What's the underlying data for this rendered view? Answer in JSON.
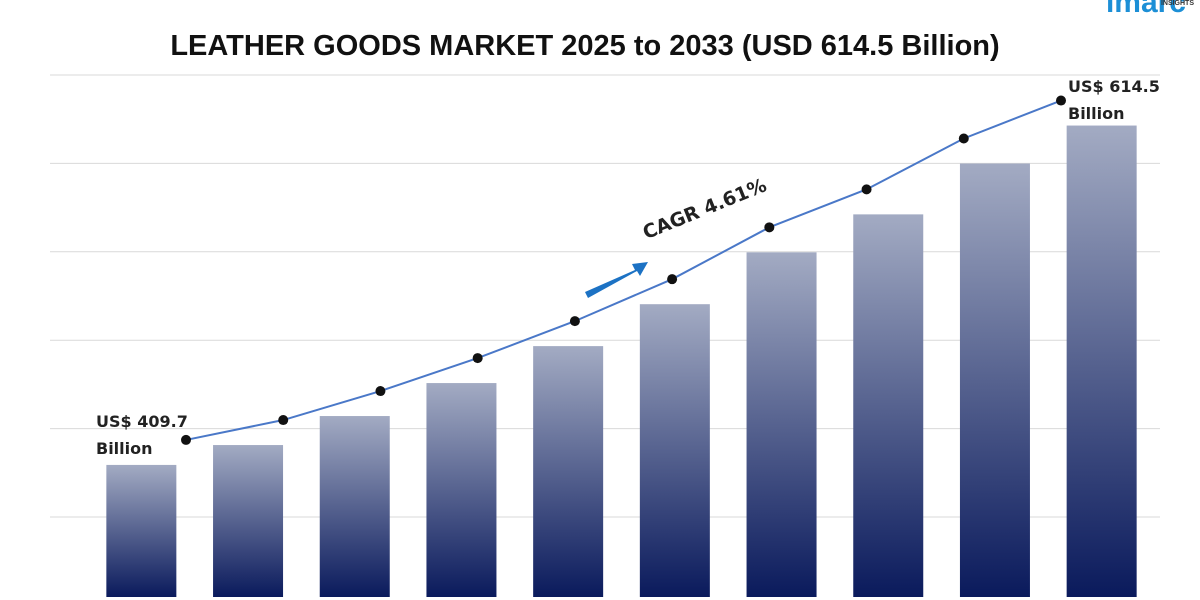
{
  "chart_data": {
    "type": "bar",
    "title": "LEATHER GOODS MARKET 2025 to 2033 (USD 614.5 Billion)",
    "values": [
      409.7,
      421.7,
      439.2,
      459.1,
      481.4,
      506.7,
      538.0,
      560.9,
      591.6,
      614.5
    ],
    "value_labels": [
      "US$ 409.7 Billion",
      null,
      null,
      null,
      null,
      null,
      null,
      null,
      null,
      "US$ 614.5 Billion"
    ],
    "annotation": "CAGR 4.61%",
    "logo": "imarc",
    "logo_subtitle": "INSIGHTS",
    "color": "#0a1a5c",
    "line_color": "#4a78c8",
    "ylim": [
      330,
      645
    ],
    "grid": true
  }
}
